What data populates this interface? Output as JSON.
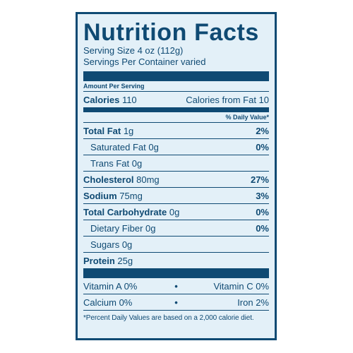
{
  "title": "Nutrition Facts",
  "serving_size": "Serving Size 4 oz (112g)",
  "servings_per_container": "Servings Per Container varied",
  "amount_per_serving": "Amount Per Serving",
  "calories": {
    "label": "Calories",
    "value": "110"
  },
  "calories_from_fat": "Calories from Fat 10",
  "daily_value_header": "% Daily Value*",
  "nutrients": [
    {
      "label": "Total Fat",
      "amount": "1g",
      "dv": "2%"
    },
    {
      "label": "Saturated Fat",
      "amount": "0g",
      "dv": "0%"
    },
    {
      "label": "Trans Fat",
      "amount": "0g",
      "dv": ""
    },
    {
      "label": "Cholesterol",
      "amount": "80mg",
      "dv": "27%"
    },
    {
      "label": "Sodium",
      "amount": "75mg",
      "dv": "3%"
    },
    {
      "label": "Total Carbohydrate",
      "amount": "0g",
      "dv": "0%"
    },
    {
      "label": "Dietary Fiber",
      "amount": "0g",
      "dv": "0%"
    },
    {
      "label": "Sugars",
      "amount": "0g",
      "dv": ""
    },
    {
      "label": "Protein",
      "amount": "25g",
      "dv": ""
    }
  ],
  "vitamins": [
    {
      "left": "Vitamin A 0%",
      "right": "Vitamin C 0%"
    },
    {
      "left": "Calcium 0%",
      "right": "Iron 2%"
    }
  ],
  "bullet": "•",
  "footnote": "*Percent Daily Values are based on a 2,000 calorie diet.",
  "colors": {
    "ink": "#0f4a73",
    "background": "#e3f0f8"
  }
}
